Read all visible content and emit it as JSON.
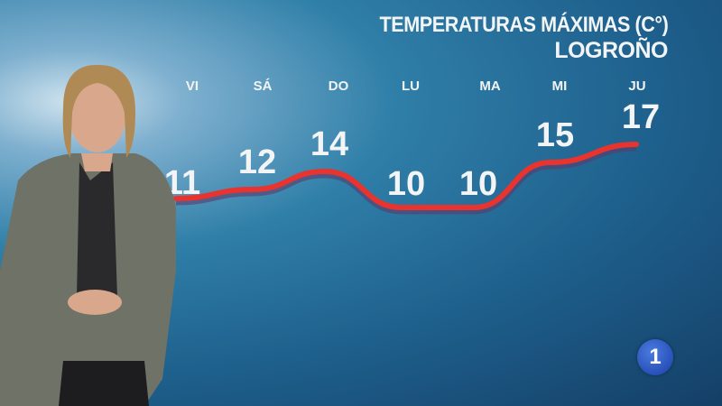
{
  "header": {
    "title": "TEMPERATURAS MÁXIMAS (C°)",
    "location": "LOGROÑO"
  },
  "channel_logo": {
    "text": "1"
  },
  "colors": {
    "line": "#e8332f",
    "text": "#f2f4f6"
  },
  "chart_data": {
    "type": "line",
    "title": "TEMPERATURAS MÁXIMAS (C°)",
    "subtitle": "LOGROÑO",
    "categories": [
      "VI",
      "SÁ",
      "DO",
      "LU",
      "MA",
      "MI",
      "JU"
    ],
    "values": [
      11,
      12,
      14,
      10,
      10,
      15,
      17
    ],
    "data_labels": [
      "11",
      "12",
      "14",
      "10",
      "10",
      "15",
      "17"
    ],
    "grid": false
  }
}
